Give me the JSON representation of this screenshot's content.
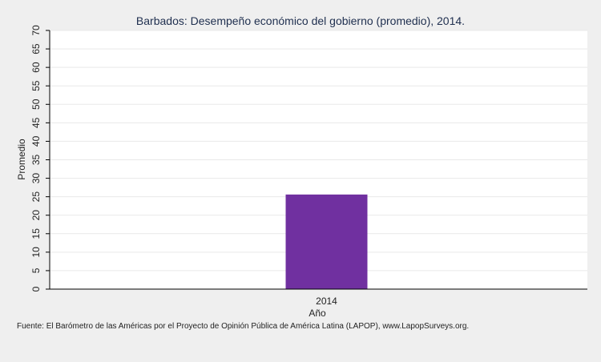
{
  "chart_data": {
    "type": "bar",
    "title": "Barbados: Desempeño económico del gobierno (promedio), 2014.",
    "xlabel": "Año",
    "ylabel": "Promedio",
    "categories": [
      "2014"
    ],
    "values": [
      25.6
    ],
    "ylim": [
      0,
      70
    ],
    "yticks": [
      "0",
      "5",
      "10",
      "15",
      "20",
      "25",
      "30",
      "35",
      "40",
      "45",
      "50",
      "55",
      "60",
      "65",
      "70"
    ],
    "grid": true,
    "bar_color": "#7030a0"
  },
  "source": "Fuente: El Barómetro de las Américas por el Proyecto de Opinión Pública de América Latina (LAPOP), www.LapopSurveys.org."
}
